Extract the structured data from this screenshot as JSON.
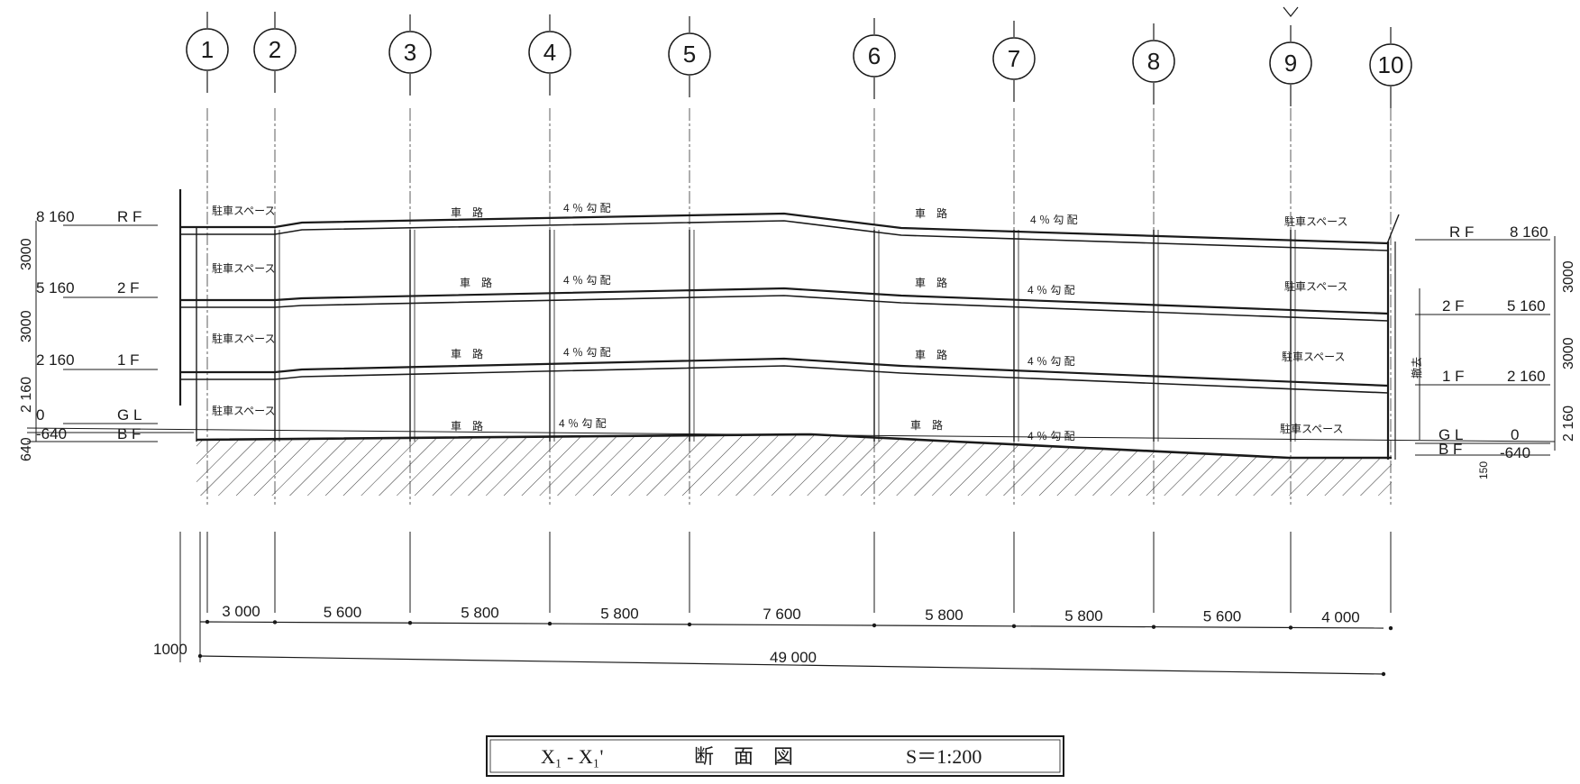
{
  "grid_lines": [
    "1",
    "2",
    "3",
    "4",
    "5",
    "6",
    "7",
    "8",
    "9",
    "10"
  ],
  "levels_left": [
    {
      "value": "8 160",
      "name": "R F"
    },
    {
      "value": "5 160",
      "name": "2 F"
    },
    {
      "value": "2 160",
      "name": "1 F"
    },
    {
      "value": "0",
      "name": "G L"
    },
    {
      "value": "-640",
      "name": "B F"
    }
  ],
  "levels_right": [
    {
      "value": "8 160",
      "name": "R F"
    },
    {
      "value": "5 160",
      "name": "2 F"
    },
    {
      "value": "2 160",
      "name": "1 F"
    },
    {
      "value": "0",
      "name": "G L"
    },
    {
      "value": "-640",
      "name": "B F"
    }
  ],
  "vertical_dims_left": [
    "3000",
    "3000",
    "2 160",
    "640"
  ],
  "vertical_dims_right": [
    "3000",
    "3000",
    "2 160"
  ],
  "right_side_note": "撤去",
  "right_small_dim": "150",
  "floor_notes": {
    "rf": [
      "駐車スペース",
      "車　路",
      "4 ％ 勾 配",
      "車　路",
      "4 ％ 勾 配",
      "駐車スペース"
    ],
    "f2": [
      "駐車スペース",
      "車　路",
      "4 ％ 勾 配",
      "車　路",
      "4 ％ 勾 配",
      "駐車スペース"
    ],
    "f1": [
      "駐車スペース",
      "車　路",
      "4 ％ 勾 配",
      "車　路",
      "4 ％ 勾 配",
      "駐車スペース"
    ],
    "bf": [
      "駐車スペース",
      "車　路",
      "4 ％ 勾 配",
      "車　路",
      "4 ％ 勾 配",
      "駐車スペース"
    ]
  },
  "bay_dims": [
    "3 000",
    "5 600",
    "5 800",
    "5 800",
    "7 600",
    "5 800",
    "5 800",
    "5 600",
    "4 000"
  ],
  "left_offset_dim": "1000",
  "total_dim": "49 000",
  "title": {
    "section_id": "X₁ - X₁'",
    "name": "断　面　図",
    "scale": "S＝1:200"
  }
}
